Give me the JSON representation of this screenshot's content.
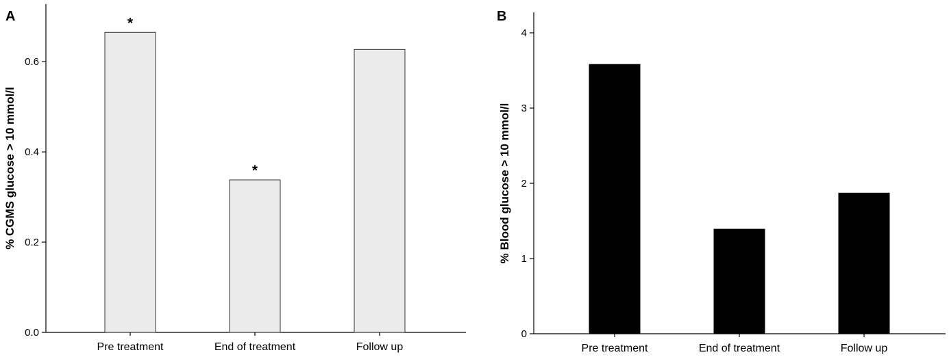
{
  "chart_data": [
    {
      "panel": "A",
      "type": "bar",
      "categories": [
        "Pre treatment",
        "End of treatment",
        "Follow up"
      ],
      "values": [
        0.665,
        0.338,
        0.627
      ],
      "annotations": [
        "*",
        "*",
        ""
      ],
      "ylabel": "% CGMS glucose > 10 mmol/l",
      "xlabel": "",
      "ylim": [
        0,
        0.72
      ],
      "yticks": [
        "0.0",
        "0.2",
        "0.4",
        "0.6"
      ],
      "tick_values": [
        0,
        0.2,
        0.4,
        0.6
      ],
      "bar_color": "#ebebeb",
      "bar_stroke": "#333333",
      "grid": false
    },
    {
      "panel": "B",
      "type": "bar",
      "categories": [
        "Pre treatment",
        "End of treatment",
        "Follow up"
      ],
      "values": [
        3.58,
        1.39,
        1.87
      ],
      "annotations": [
        "",
        "",
        ""
      ],
      "ylabel": "% Blood glucose > 10 mmol/l",
      "xlabel": "",
      "ylim": [
        0,
        4.3
      ],
      "yticks": [
        "0",
        "1",
        "2",
        "3",
        "4"
      ],
      "tick_values": [
        0,
        1,
        2,
        3,
        4
      ],
      "bar_color": "#000000",
      "bar_stroke": "#000000",
      "grid": false
    }
  ]
}
